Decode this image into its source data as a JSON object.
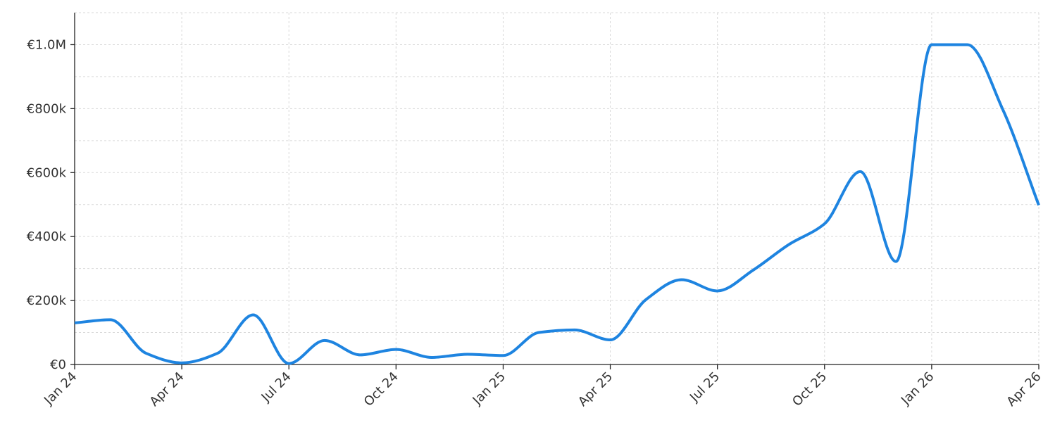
{
  "chart_data": {
    "type": "line",
    "categories": [
      "Jan 24",
      null,
      null,
      "Apr 24",
      null,
      null,
      "Jul 24",
      null,
      null,
      "Oct 24",
      null,
      null,
      "Jan 25",
      null,
      null,
      "Apr 25",
      null,
      null,
      "Jul 25",
      null,
      null,
      "Oct 25",
      null,
      null,
      "Jan 26",
      null,
      null,
      "Apr 26"
    ],
    "series": [
      {
        "color": "#1e84e0",
        "values": [
          130000,
          140000,
          35000,
          5000,
          35000,
          155000,
          3000,
          75000,
          30000,
          47000,
          22000,
          32000,
          28000,
          100000,
          108000,
          77000,
          203000,
          265000,
          230000,
          295000,
          375000,
          440000,
          603000,
          322000,
          1000000,
          1000000,
          795000,
          498000
        ]
      }
    ],
    "ylim": [
      0,
      1100000
    ],
    "yticks": [
      {
        "value": 0,
        "label": "€0"
      },
      {
        "value": 200000,
        "label": "€200k"
      },
      {
        "value": 400000,
        "label": "€400k"
      },
      {
        "value": 600000,
        "label": "€600k"
      },
      {
        "value": 800000,
        "label": "€800k"
      },
      {
        "value": 1000000,
        "label": "€1.0M"
      }
    ],
    "y_minor_ticks": [
      100000,
      300000,
      500000,
      700000,
      900000,
      1100000
    ],
    "grid": true
  }
}
